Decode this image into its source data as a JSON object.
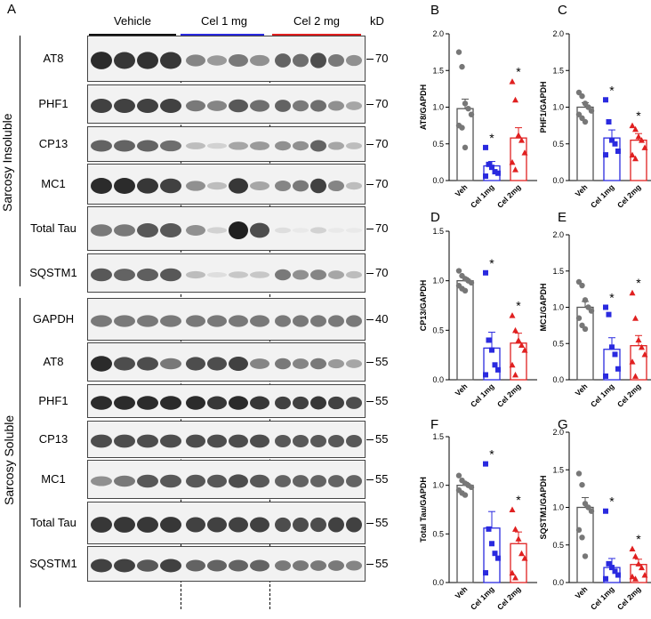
{
  "panel_a": {
    "letter": "A",
    "groups": [
      {
        "label": "Vehicle",
        "color": "#000000"
      },
      {
        "label": "Cel 1 mg",
        "color": "#2a2adf"
      },
      {
        "label": "Cel 2 mg",
        "color": "#e02020"
      }
    ],
    "kd_label": "kD",
    "sections": {
      "insoluble": "Sarcosy Insoluble",
      "soluble": "Sarcosy Soluble"
    },
    "blots": [
      {
        "protein": "AT8",
        "mw": "70"
      },
      {
        "protein": "PHF1",
        "mw": "70"
      },
      {
        "protein": "CP13",
        "mw": "70"
      },
      {
        "protein": "MC1",
        "mw": "70"
      },
      {
        "protein": "Total Tau",
        "mw": "70"
      },
      {
        "protein": "SQSTM1",
        "mw": "70"
      },
      {
        "protein": "GAPDH",
        "mw": "40"
      },
      {
        "protein": "AT8",
        "mw": "55"
      },
      {
        "protein": "PHF1",
        "mw": "55"
      },
      {
        "protein": "CP13",
        "mw": "55"
      },
      {
        "protein": "MC1",
        "mw": "55"
      },
      {
        "protein": "Total Tau",
        "mw": "55"
      },
      {
        "protein": "SQSTM1",
        "mw": "55"
      }
    ]
  },
  "chart_data": [
    {
      "panel": "B",
      "type": "bar",
      "ylabel": "AT8/GAPDH",
      "ylim": [
        0,
        2.0
      ],
      "yticks": [
        "0.0",
        "0.5",
        "1.0",
        "1.5",
        "2.0"
      ],
      "categories": [
        "Veh",
        "Cel 1mg",
        "Cel 2mg"
      ],
      "means": [
        0.98,
        0.2,
        0.58
      ],
      "sem": [
        0.13,
        0.06,
        0.14
      ],
      "points": [
        [
          1.75,
          1.55,
          1.05,
          0.98,
          0.9,
          0.75,
          0.72,
          0.45
        ],
        [
          0.45,
          0.22,
          0.18,
          0.12,
          0.1,
          0.06
        ],
        [
          1.35,
          1.1,
          0.62,
          0.55,
          0.38,
          0.25,
          0.15
        ]
      ],
      "significance": [
        "",
        "*",
        "*"
      ]
    },
    {
      "panel": "C",
      "type": "bar",
      "ylabel": "PHF1/GAPDH",
      "ylim": [
        0,
        2.0
      ],
      "yticks": [
        "0.0",
        "0.5",
        "1.0",
        "1.5",
        "2.0"
      ],
      "categories": [
        "Veh",
        "Cel 1mg",
        "Cel 2mg"
      ],
      "means": [
        1.0,
        0.58,
        0.55
      ],
      "sem": [
        0.06,
        0.11,
        0.09
      ],
      "points": [
        [
          1.2,
          1.15,
          1.05,
          1.0,
          0.95,
          0.9,
          0.85,
          0.8
        ],
        [
          1.1,
          0.8,
          0.55,
          0.5,
          0.4,
          0.35
        ],
        [
          0.75,
          0.7,
          0.6,
          0.55,
          0.45,
          0.35,
          0.3
        ]
      ],
      "significance": [
        "",
        "*",
        "*"
      ]
    },
    {
      "panel": "D",
      "type": "bar",
      "ylabel": "CP13/GAPDH",
      "ylim": [
        0,
        1.5
      ],
      "yticks": [
        "0.0",
        "0.5",
        "1.0",
        "1.5"
      ],
      "categories": [
        "Veh",
        "Cel 1mg",
        "Cel 2mg"
      ],
      "means": [
        1.0,
        0.32,
        0.37
      ],
      "sem": [
        0.03,
        0.16,
        0.1
      ],
      "points": [
        [
          1.1,
          1.05,
          1.02,
          1.0,
          0.98,
          0.95,
          0.92,
          0.9
        ],
        [
          1.08,
          0.4,
          0.3,
          0.15,
          0.1,
          0.05
        ],
        [
          0.65,
          0.5,
          0.4,
          0.35,
          0.3,
          0.15,
          0.05
        ]
      ],
      "significance": [
        "",
        "*",
        "*"
      ]
    },
    {
      "panel": "E",
      "type": "bar",
      "ylabel": "MC1/GAPDH",
      "ylim": [
        0,
        2.0
      ],
      "yticks": [
        "0.0",
        "0.5",
        "1.0",
        "1.5",
        "2.0"
      ],
      "categories": [
        "Veh",
        "Cel 1mg",
        "Cel 2mg"
      ],
      "means": [
        1.0,
        0.42,
        0.47
      ],
      "sem": [
        0.08,
        0.16,
        0.14
      ],
      "points": [
        [
          1.35,
          1.3,
          1.1,
          1.0,
          0.95,
          0.85,
          0.75,
          0.7
        ],
        [
          1.0,
          0.9,
          0.45,
          0.35,
          0.15,
          0.05
        ],
        [
          1.2,
          0.85,
          0.55,
          0.45,
          0.35,
          0.25,
          0.05
        ]
      ],
      "significance": [
        "",
        "*",
        "*"
      ]
    },
    {
      "panel": "F",
      "type": "bar",
      "ylabel": "Total Tau/GAPDH",
      "ylim": [
        0,
        1.5
      ],
      "yticks": [
        "0.0",
        "0.5",
        "1.0",
        "1.5"
      ],
      "categories": [
        "Veh",
        "Cel 1mg",
        "Cel 2mg"
      ],
      "means": [
        1.0,
        0.56,
        0.4
      ],
      "sem": [
        0.03,
        0.17,
        0.12
      ],
      "points": [
        [
          1.1,
          1.05,
          1.02,
          1.0,
          0.98,
          0.95,
          0.92,
          0.9
        ],
        [
          1.22,
          0.55,
          0.4,
          0.3,
          0.25,
          0.1
        ],
        [
          0.75,
          0.55,
          0.45,
          0.3,
          0.25,
          0.1,
          0.05
        ]
      ],
      "significance": [
        "",
        "*",
        "*"
      ]
    },
    {
      "panel": "G",
      "type": "bar",
      "ylabel": "SQSTM1/GAPDH",
      "ylim": [
        0,
        2.0
      ],
      "yticks": [
        "0.0",
        "0.5",
        "1.0",
        "1.5",
        "2.0"
      ],
      "categories": [
        "Veh",
        "Cel 1mg",
        "Cel 2mg"
      ],
      "means": [
        1.0,
        0.2,
        0.24
      ],
      "sem": [
        0.13,
        0.12,
        0.07
      ],
      "points": [
        [
          1.45,
          1.3,
          1.05,
          1.0,
          0.95,
          0.7,
          0.6,
          0.35
        ],
        [
          0.95,
          0.25,
          0.2,
          0.15,
          0.1,
          0.05
        ],
        [
          0.45,
          0.35,
          0.25,
          0.2,
          0.1,
          0.08,
          0.05
        ]
      ],
      "significance": [
        "",
        "*",
        "*"
      ]
    }
  ]
}
